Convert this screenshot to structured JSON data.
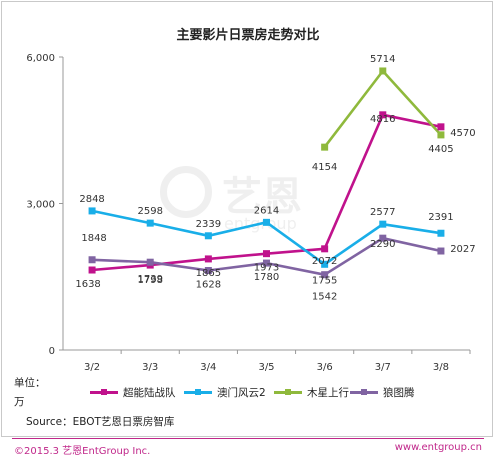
{
  "chart_data": {
    "type": "line",
    "title": "主要影片日票房走势对比",
    "categories": [
      "3/2",
      "3/3",
      "3/4",
      "3/5",
      "3/6",
      "3/7",
      "3/8"
    ],
    "ylim": [
      0,
      6000
    ],
    "yticks": [
      "0",
      "3,000",
      "6,000"
    ],
    "grid": false,
    "legend_position": "bottom",
    "series": [
      {
        "name": "超能陆战队",
        "color": "#c0128c",
        "values": [
          1638,
          1739,
          1865,
          1973,
          2072,
          4816,
          4570
        ]
      },
      {
        "name": "澳门风云2",
        "color": "#19aee8",
        "values": [
          2848,
          2598,
          2339,
          2614,
          1755,
          2577,
          2391
        ]
      },
      {
        "name": "木星上行",
        "color": "#8fb93c",
        "values": [
          null,
          null,
          null,
          null,
          4154,
          5714,
          4405
        ]
      },
      {
        "name": "狼图腾",
        "color": "#8064a2",
        "values": [
          1848,
          1798,
          1628,
          1780,
          1542,
          2290,
          2027
        ]
      }
    ]
  },
  "unit_label_line1": "单位：",
  "unit_label_line2": "万",
  "source": "Source：EBOT艺恩日票房智库",
  "copyright": "©2015.3  艺恩EntGroup Inc.",
  "website": "www.entgroup.cn",
  "watermark": {
    "logo_text": "艺恩",
    "sub_text": "entgroup"
  }
}
